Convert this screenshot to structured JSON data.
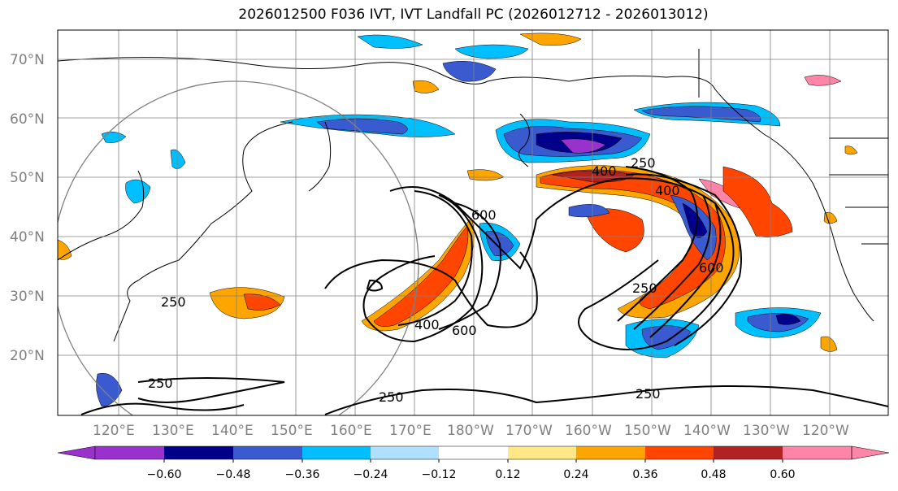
{
  "title": "2026012500 F036 IVT, IVT Landfall PC (2026012712 - 2026013012)",
  "latitude_labels": [
    "70°N",
    "60°N",
    "50°N",
    "40°N",
    "30°N",
    "20°N"
  ],
  "longitude_labels": [
    "120°E",
    "130°E",
    "140°E",
    "150°E",
    "160°E",
    "170°E",
    "180°W",
    "170°W",
    "160°W",
    "150°W",
    "140°W",
    "130°W",
    "120°W"
  ],
  "contour_labels": [
    "250",
    "400",
    "600"
  ],
  "colorbar": {
    "colors": [
      "#9932CC",
      "#00008B",
      "#3A5BD0",
      "#00BFFF",
      "#B0E0FF",
      "#FFFFFF",
      "#FFE885",
      "#FFA500",
      "#FF4500",
      "#B22222",
      "#FF85A8"
    ],
    "ticks": [
      "−0.60",
      "−0.48",
      "−0.36",
      "−0.24",
      "−0.12",
      "0.12",
      "0.24",
      "0.36",
      "0.48",
      "0.60"
    ]
  }
}
